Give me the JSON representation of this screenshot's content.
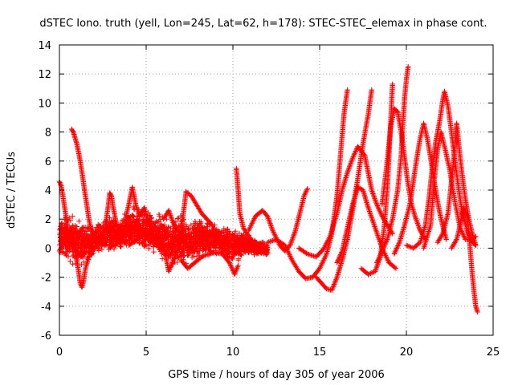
{
  "chart_data": {
    "type": "scatter",
    "title": "dSTEC Iono. truth (yell, Lon=245, Lat=62, h=178): STEC-STEC_elemax in phase cont.",
    "xlabel": "GPS time / hours of day 305 of year 2006",
    "ylabel": "dSTEC  / TECUs",
    "xlim": [
      0,
      25
    ],
    "ylim": [
      -6,
      14
    ],
    "xticks": [
      0,
      5,
      10,
      15,
      20,
      25
    ],
    "yticks": [
      -6,
      -4,
      -2,
      0,
      2,
      4,
      6,
      8,
      10,
      12,
      14
    ],
    "grid": true,
    "marker": "plus",
    "color": "#ff0000",
    "series": [
      {
        "values": [
          [
            0.0,
            4.6
          ],
          [
            0.1,
            4.3
          ],
          [
            0.2,
            3.6
          ],
          [
            0.3,
            2.8
          ],
          [
            0.4,
            2.0
          ],
          [
            0.5,
            1.2
          ],
          [
            0.6,
            0.6
          ],
          [
            0.8,
            0.2
          ],
          [
            1.0,
            -0.2
          ],
          [
            1.2,
            -0.5
          ],
          [
            1.5,
            -0.3
          ]
        ]
      },
      {
        "values": [
          [
            0.0,
            -0.2
          ],
          [
            0.3,
            0.5
          ],
          [
            0.6,
            1.2
          ],
          [
            0.8,
            0.4
          ],
          [
            1.0,
            -0.8
          ],
          [
            1.1,
            -1.6
          ],
          [
            1.2,
            -2.4
          ],
          [
            1.3,
            -2.7
          ],
          [
            1.4,
            -2.2
          ],
          [
            1.5,
            -1.4
          ],
          [
            1.7,
            -0.6
          ],
          [
            2.0,
            0.0
          ]
        ]
      },
      {
        "values": [
          [
            0.7,
            8.2
          ],
          [
            0.8,
            8.0
          ],
          [
            0.9,
            7.6
          ],
          [
            1.0,
            7.2
          ],
          [
            1.1,
            6.6
          ],
          [
            1.2,
            6.0
          ],
          [
            1.3,
            5.2
          ],
          [
            1.4,
            4.4
          ],
          [
            1.5,
            3.6
          ],
          [
            1.6,
            2.8
          ],
          [
            1.7,
            2.0
          ],
          [
            1.8,
            1.4
          ],
          [
            2.0,
            0.8
          ],
          [
            2.3,
            0.4
          ],
          [
            2.6,
            0.2
          ]
        ]
      },
      {
        "values": [
          [
            2.6,
            1.2
          ],
          [
            2.8,
            2.8
          ],
          [
            2.9,
            3.8
          ],
          [
            3.0,
            3.6
          ],
          [
            3.1,
            2.8
          ],
          [
            3.3,
            1.6
          ],
          [
            3.5,
            0.8
          ],
          [
            3.8,
            0.4
          ]
        ]
      },
      {
        "values": [
          [
            3.8,
            2.0
          ],
          [
            4.0,
            3.0
          ],
          [
            4.2,
            4.2
          ],
          [
            4.4,
            3.0
          ],
          [
            4.6,
            2.2
          ],
          [
            4.9,
            2.8
          ],
          [
            5.2,
            1.4
          ],
          [
            5.5,
            0.4
          ],
          [
            5.8,
            0.0
          ]
        ]
      },
      {
        "values": [
          [
            4.0,
            0.2
          ],
          [
            4.5,
            0.6
          ],
          [
            5.0,
            1.0
          ],
          [
            5.5,
            0.8
          ],
          [
            6.0,
            0.2
          ],
          [
            6.3,
            -1.6
          ],
          [
            6.5,
            -1.0
          ],
          [
            6.8,
            -0.2
          ],
          [
            7.0,
            0.5
          ]
        ]
      },
      {
        "values": [
          [
            6.0,
            2.0
          ],
          [
            6.3,
            2.6
          ],
          [
            6.6,
            1.6
          ],
          [
            7.0,
            1.0
          ],
          [
            7.3,
            3.9
          ],
          [
            7.6,
            3.6
          ],
          [
            7.9,
            3.0
          ],
          [
            8.2,
            2.4
          ],
          [
            8.5,
            2.0
          ],
          [
            8.8,
            1.6
          ],
          [
            9.1,
            0.8
          ],
          [
            9.4,
            0.4
          ]
        ]
      },
      {
        "values": [
          [
            7.0,
            -0.8
          ],
          [
            7.4,
            -1.4
          ],
          [
            7.8,
            -1.0
          ],
          [
            8.2,
            -0.6
          ],
          [
            8.6,
            -0.4
          ],
          [
            9.0,
            -0.3
          ],
          [
            9.4,
            -0.4
          ],
          [
            9.8,
            -1.0
          ],
          [
            10.1,
            -1.8
          ],
          [
            10.3,
            -1.2
          ]
        ]
      },
      {
        "values": [
          [
            10.2,
            5.5
          ],
          [
            10.3,
            4.0
          ],
          [
            10.4,
            2.4
          ],
          [
            10.6,
            1.4
          ],
          [
            10.9,
            0.8
          ],
          [
            11.2,
            0.2
          ],
          [
            11.6,
            -0.2
          ],
          [
            12.0,
            -0.4
          ]
        ]
      },
      {
        "values": [
          [
            10.9,
            1.2
          ],
          [
            11.3,
            2.2
          ],
          [
            11.7,
            2.6
          ],
          [
            12.0,
            2.2
          ],
          [
            12.3,
            1.2
          ],
          [
            12.7,
            0.2
          ],
          [
            13.0,
            -0.2
          ],
          [
            13.3,
            0.2
          ],
          [
            13.6,
            1.2
          ],
          [
            13.9,
            2.6
          ],
          [
            14.1,
            3.6
          ],
          [
            14.3,
            4.1
          ]
        ]
      },
      {
        "values": [
          [
            12.0,
            0.4
          ],
          [
            12.5,
            0.6
          ],
          [
            13.0,
            0.2
          ],
          [
            13.4,
            -0.8
          ],
          [
            13.8,
            -1.6
          ],
          [
            14.2,
            -2.1
          ],
          [
            14.6,
            -2.0
          ],
          [
            15.0,
            -1.4
          ],
          [
            15.4,
            -0.4
          ],
          [
            15.7,
            1.0
          ],
          [
            16.0,
            3.6
          ],
          [
            16.2,
            6.4
          ],
          [
            16.4,
            9.2
          ],
          [
            16.6,
            10.9
          ]
        ]
      },
      {
        "values": [
          [
            14.8,
            -2.0
          ],
          [
            15.1,
            -2.4
          ],
          [
            15.4,
            -2.8
          ],
          [
            15.7,
            -2.9
          ],
          [
            16.0,
            -2.0
          ],
          [
            16.3,
            -0.8
          ],
          [
            16.6,
            0.6
          ],
          [
            16.9,
            2.6
          ],
          [
            17.2,
            4.8
          ],
          [
            17.5,
            7.2
          ],
          [
            17.8,
            9.2
          ],
          [
            18.0,
            10.9
          ]
        ]
      },
      {
        "values": [
          [
            13.8,
            0.0
          ],
          [
            14.3,
            -0.4
          ],
          [
            14.8,
            -0.6
          ],
          [
            15.2,
            -0.1
          ],
          [
            15.6,
            0.8
          ],
          [
            16.0,
            2.4
          ],
          [
            16.3,
            4.0
          ],
          [
            16.6,
            5.2
          ],
          [
            16.9,
            6.2
          ],
          [
            17.2,
            7.0
          ],
          [
            17.6,
            6.4
          ],
          [
            17.8,
            5.2
          ],
          [
            18.0,
            4.0
          ],
          [
            18.3,
            3.0
          ],
          [
            18.6,
            2.2
          ],
          [
            18.9,
            1.6
          ],
          [
            19.2,
            1.0
          ]
        ]
      },
      {
        "values": [
          [
            16.0,
            -1.0
          ],
          [
            16.3,
            -0.2
          ],
          [
            16.6,
            1.4
          ],
          [
            16.9,
            3.0
          ],
          [
            17.2,
            4.2
          ],
          [
            17.5,
            4.0
          ],
          [
            17.8,
            2.8
          ],
          [
            18.2,
            1.4
          ],
          [
            18.6,
            0.0
          ],
          [
            19.0,
            -1.0
          ],
          [
            19.4,
            -1.4
          ]
        ]
      },
      {
        "values": [
          [
            17.4,
            -1.4
          ],
          [
            17.8,
            -1.8
          ],
          [
            18.2,
            -1.6
          ],
          [
            18.5,
            -0.6
          ],
          [
            18.7,
            1.2
          ],
          [
            18.9,
            4.0
          ],
          [
            19.0,
            6.4
          ],
          [
            19.1,
            8.8
          ],
          [
            19.2,
            11.3
          ]
        ]
      },
      {
        "values": [
          [
            18.3,
            -1.0
          ],
          [
            18.6,
            -0.2
          ],
          [
            18.9,
            0.6
          ],
          [
            19.2,
            2.0
          ],
          [
            19.5,
            4.0
          ],
          [
            19.7,
            6.4
          ],
          [
            19.8,
            8.6
          ],
          [
            19.9,
            10.4
          ],
          [
            20.0,
            11.6
          ],
          [
            20.1,
            12.5
          ]
        ]
      },
      {
        "values": [
          [
            18.6,
            3.0
          ],
          [
            18.9,
            6.0
          ],
          [
            19.1,
            8.4
          ],
          [
            19.3,
            9.6
          ],
          [
            19.5,
            9.4
          ],
          [
            19.7,
            8.0
          ],
          [
            19.9,
            6.2
          ],
          [
            20.1,
            4.4
          ],
          [
            20.3,
            3.0
          ],
          [
            20.5,
            2.2
          ],
          [
            20.8,
            1.2
          ],
          [
            21.1,
            0.6
          ]
        ]
      },
      {
        "values": [
          [
            19.3,
            -0.4
          ],
          [
            19.6,
            0.4
          ],
          [
            19.9,
            1.6
          ],
          [
            20.2,
            3.0
          ],
          [
            20.4,
            4.6
          ],
          [
            20.6,
            6.2
          ],
          [
            20.8,
            7.6
          ],
          [
            21.0,
            8.6
          ],
          [
            21.2,
            7.6
          ],
          [
            21.4,
            6.2
          ],
          [
            21.6,
            4.6
          ],
          [
            21.8,
            3.2
          ],
          [
            22.0,
            2.0
          ],
          [
            22.3,
            0.6
          ]
        ]
      },
      {
        "values": [
          [
            20.0,
            0.2
          ],
          [
            20.4,
            0.0
          ],
          [
            20.8,
            0.4
          ],
          [
            21.1,
            1.6
          ],
          [
            21.3,
            3.4
          ],
          [
            21.5,
            5.6
          ],
          [
            21.7,
            7.4
          ],
          [
            21.9,
            8.6
          ],
          [
            22.1,
            10.2
          ],
          [
            22.2,
            10.8
          ],
          [
            22.4,
            9.8
          ],
          [
            22.6,
            8.0
          ],
          [
            22.8,
            6.0
          ],
          [
            23.0,
            4.2
          ],
          [
            23.2,
            2.6
          ],
          [
            23.5,
            1.2
          ],
          [
            23.8,
            0.4
          ],
          [
            24.0,
            0.2
          ]
        ]
      },
      {
        "values": [
          [
            21.0,
            0.0
          ],
          [
            21.4,
            1.6
          ],
          [
            21.6,
            4.6
          ],
          [
            21.8,
            6.8
          ],
          [
            22.0,
            8.0
          ],
          [
            22.2,
            7.0
          ],
          [
            22.5,
            5.4
          ],
          [
            22.8,
            3.2
          ],
          [
            23.1,
            1.4
          ],
          [
            23.4,
            0.6
          ],
          [
            23.7,
            0.6
          ],
          [
            24.0,
            0.8
          ]
        ]
      },
      {
        "values": [
          [
            21.8,
            0.4
          ],
          [
            22.1,
            1.0
          ],
          [
            22.4,
            2.4
          ],
          [
            22.6,
            4.6
          ],
          [
            22.8,
            7.0
          ],
          [
            22.9,
            8.6
          ],
          [
            23.0,
            7.4
          ],
          [
            23.2,
            5.2
          ],
          [
            23.4,
            3.4
          ],
          [
            23.6,
            2.0
          ],
          [
            23.8,
            1.0
          ],
          [
            24.0,
            0.2
          ]
        ]
      },
      {
        "values": [
          [
            22.6,
            0.0
          ],
          [
            22.9,
            0.6
          ],
          [
            23.1,
            1.6
          ],
          [
            23.3,
            2.8
          ],
          [
            23.5,
            2.2
          ],
          [
            23.6,
            1.0
          ],
          [
            23.7,
            -0.4
          ],
          [
            23.8,
            -1.8
          ],
          [
            23.9,
            -3.0
          ],
          [
            24.0,
            -4.0
          ],
          [
            24.1,
            -4.4
          ]
        ]
      }
    ],
    "noise_band": [
      [
        0.0,
        -0.6,
        2.0
      ],
      [
        0.5,
        -1.2,
        2.8
      ],
      [
        1.0,
        -1.6,
        2.4
      ],
      [
        1.5,
        -1.2,
        2.0
      ],
      [
        2.0,
        -0.6,
        1.6
      ],
      [
        2.5,
        -0.4,
        2.0
      ],
      [
        3.0,
        -0.8,
        2.6
      ],
      [
        3.5,
        -0.4,
        2.0
      ],
      [
        4.0,
        -0.2,
        3.0
      ],
      [
        4.5,
        -0.4,
        3.2
      ],
      [
        5.0,
        -0.6,
        3.0
      ],
      [
        5.5,
        -0.8,
        2.8
      ],
      [
        6.0,
        -1.2,
        2.6
      ],
      [
        6.5,
        -1.6,
        2.2
      ],
      [
        7.0,
        -1.4,
        2.6
      ],
      [
        7.5,
        -1.2,
        2.2
      ],
      [
        8.0,
        -1.0,
        2.4
      ],
      [
        8.5,
        -0.8,
        2.0
      ],
      [
        9.0,
        -0.6,
        1.8
      ],
      [
        9.5,
        -0.8,
        1.6
      ],
      [
        10.0,
        -1.4,
        1.8
      ],
      [
        10.5,
        -0.8,
        1.4
      ],
      [
        11.0,
        -0.6,
        1.0
      ],
      [
        11.5,
        -0.6,
        0.6
      ],
      [
        12.0,
        -0.6,
        0.4
      ]
    ]
  }
}
